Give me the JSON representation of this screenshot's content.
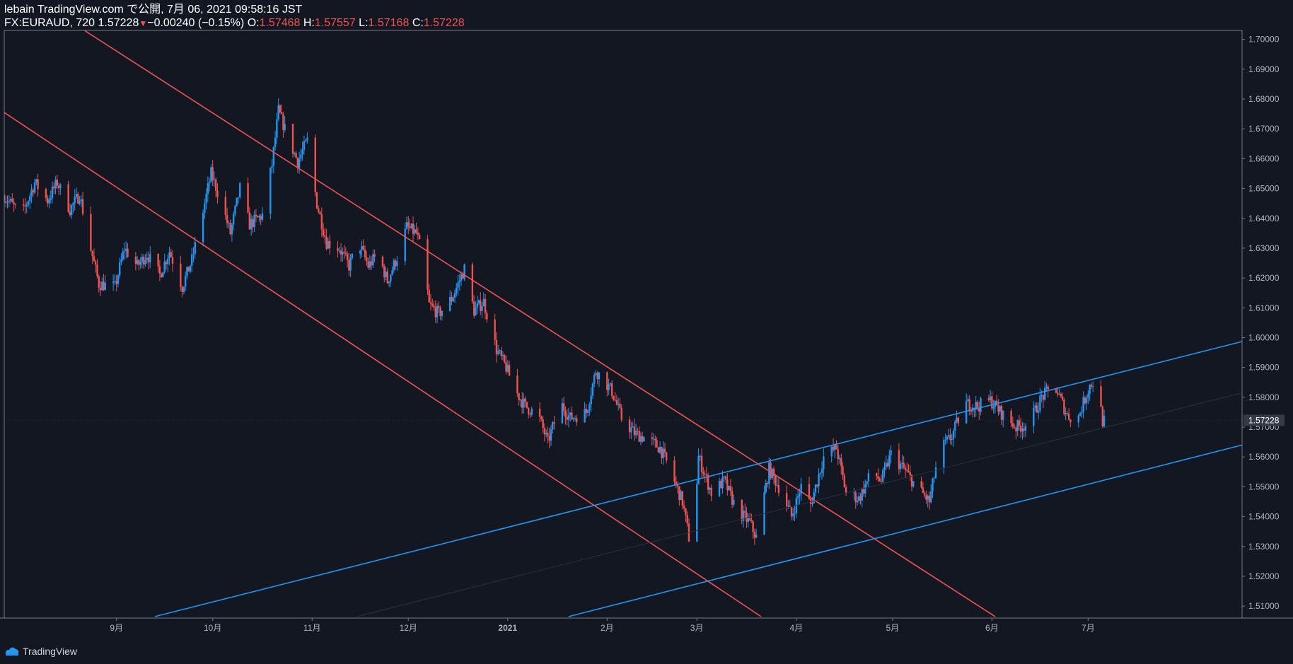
{
  "header": {
    "published": "lebain TradingView.com で公開, 7月 06, 2021 09:58:16 JST",
    "symbol": "FX:EURAUD, 720",
    "last": "1.57228",
    "change_arrow": "▼",
    "change": "−0.00240 (−0.15%)",
    "o_label": "O:",
    "o": "1.57468",
    "h_label": "H:",
    "h": "1.57557",
    "l_label": "L:",
    "l": "1.57168",
    "c_label": "C:",
    "c": "1.57228"
  },
  "footer": {
    "brand": "TradingView",
    "logo_icon": "tradingview-cloud-icon"
  },
  "colors": {
    "background": "#131722",
    "up": "#2196f3",
    "down": "#ef5350",
    "axis_text": "#b2b5be",
    "border": "#787b86"
  },
  "chart_data": {
    "type": "candlestick",
    "symbol": "FX:EURAUD",
    "interval": "720",
    "x_range": [
      "2020-07-28",
      "2021-08-18"
    ],
    "ylim": [
      1.506,
      1.703
    ],
    "y_ticks": [
      "1.70000",
      "1.69000",
      "1.68000",
      "1.67000",
      "1.66000",
      "1.65000",
      "1.64000",
      "1.63000",
      "1.62000",
      "1.61000",
      "1.60000",
      "1.59000",
      "1.58000",
      "1.57000",
      "1.56000",
      "1.55000",
      "1.54000",
      "1.53000",
      "1.52000",
      "1.51000"
    ],
    "x_ticks": [
      {
        "date": "2020-09-01",
        "label": "9月",
        "bold": false
      },
      {
        "date": "2020-10-01",
        "label": "10月",
        "bold": false
      },
      {
        "date": "2020-11-01",
        "label": "11月",
        "bold": false
      },
      {
        "date": "2020-12-01",
        "label": "12月",
        "bold": false
      },
      {
        "date": "2021-01-01",
        "label": "2021",
        "bold": true
      },
      {
        "date": "2021-02-01",
        "label": "2月",
        "bold": false
      },
      {
        "date": "2021-03-01",
        "label": "3月",
        "bold": false
      },
      {
        "date": "2021-04-01",
        "label": "4月",
        "bold": false
      },
      {
        "date": "2021-05-01",
        "label": "5月",
        "bold": false
      },
      {
        "date": "2021-06-01",
        "label": "6月",
        "bold": false
      },
      {
        "date": "2021-07-01",
        "label": "7月",
        "bold": false
      }
    ],
    "last_price": "1.57228",
    "price_path": [
      [
        "2020-07-28",
        1.648
      ],
      [
        "2020-08-03",
        1.641
      ],
      [
        "2020-08-07",
        1.652
      ],
      [
        "2020-08-11",
        1.646
      ],
      [
        "2020-08-14",
        1.652
      ],
      [
        "2020-08-18",
        1.643
      ],
      [
        "2020-08-21",
        1.648
      ],
      [
        "2020-08-24",
        1.632
      ],
      [
        "2020-08-27",
        1.618
      ],
      [
        "2020-09-01",
        1.617
      ],
      [
        "2020-09-04",
        1.63
      ],
      [
        "2020-09-08",
        1.624
      ],
      [
        "2020-09-11",
        1.628
      ],
      [
        "2020-09-15",
        1.621
      ],
      [
        "2020-09-18",
        1.629
      ],
      [
        "2020-09-22",
        1.617
      ],
      [
        "2020-09-25",
        1.626
      ],
      [
        "2020-09-28",
        1.64
      ],
      [
        "2020-10-01",
        1.655
      ],
      [
        "2020-10-04",
        1.646
      ],
      [
        "2020-10-07",
        1.635
      ],
      [
        "2020-10-10",
        1.65
      ],
      [
        "2020-10-13",
        1.638
      ],
      [
        "2020-10-17",
        1.641
      ],
      [
        "2020-10-20",
        1.658
      ],
      [
        "2020-10-22",
        1.676
      ],
      [
        "2020-10-25",
        1.667
      ],
      [
        "2020-10-28",
        1.659
      ],
      [
        "2020-10-31",
        1.666
      ],
      [
        "2020-11-03",
        1.645
      ],
      [
        "2020-11-06",
        1.632
      ],
      [
        "2020-11-10",
        1.63
      ],
      [
        "2020-11-13",
        1.624
      ],
      [
        "2020-11-16",
        1.632
      ],
      [
        "2020-11-19",
        1.624
      ],
      [
        "2020-11-22",
        1.628
      ],
      [
        "2020-11-25",
        1.619
      ],
      [
        "2020-11-28",
        1.627
      ],
      [
        "2020-12-01",
        1.637
      ],
      [
        "2020-12-04",
        1.635
      ],
      [
        "2020-12-06",
        1.627
      ],
      [
        "2020-12-08",
        1.611
      ],
      [
        "2020-12-11",
        1.608
      ],
      [
        "2020-12-15",
        1.613
      ],
      [
        "2020-12-19",
        1.623
      ],
      [
        "2020-12-22",
        1.609
      ],
      [
        "2020-12-25",
        1.612
      ],
      [
        "2020-12-29",
        1.596
      ],
      [
        "2021-01-01",
        1.59
      ],
      [
        "2021-01-04",
        1.582
      ],
      [
        "2021-01-07",
        1.577
      ],
      [
        "2021-01-11",
        1.574
      ],
      [
        "2021-01-14",
        1.565
      ],
      [
        "2021-01-18",
        1.578
      ],
      [
        "2021-01-21",
        1.573
      ],
      [
        "2021-01-26",
        1.575
      ],
      [
        "2021-01-29",
        1.589
      ],
      [
        "2021-02-01",
        1.585
      ],
      [
        "2021-02-03",
        1.582
      ],
      [
        "2021-02-06",
        1.573
      ],
      [
        "2021-02-10",
        1.568
      ],
      [
        "2021-02-14",
        1.566
      ],
      [
        "2021-02-18",
        1.563
      ],
      [
        "2021-02-21",
        1.556
      ],
      [
        "2021-02-25",
        1.545
      ],
      [
        "2021-02-28",
        1.527
      ],
      [
        "2021-03-02",
        1.56
      ],
      [
        "2021-03-06",
        1.548
      ],
      [
        "2021-03-10",
        1.552
      ],
      [
        "2021-03-14",
        1.542
      ],
      [
        "2021-03-18",
        1.538
      ],
      [
        "2021-03-20",
        1.533
      ],
      [
        "2021-03-24",
        1.556
      ],
      [
        "2021-03-28",
        1.548
      ],
      [
        "2021-03-31",
        1.54
      ],
      [
        "2021-04-03",
        1.55
      ],
      [
        "2021-04-06",
        1.544
      ],
      [
        "2021-04-10",
        1.56
      ],
      [
        "2021-04-14",
        1.563
      ],
      [
        "2021-04-17",
        1.548
      ],
      [
        "2021-04-21",
        1.546
      ],
      [
        "2021-04-25",
        1.555
      ],
      [
        "2021-04-28",
        1.552
      ],
      [
        "2021-05-01",
        1.561
      ],
      [
        "2021-05-05",
        1.556
      ],
      [
        "2021-05-09",
        1.55
      ],
      [
        "2021-05-13",
        1.545
      ],
      [
        "2021-05-16",
        1.562
      ],
      [
        "2021-05-20",
        1.567
      ],
      [
        "2021-05-24",
        1.578
      ],
      [
        "2021-05-28",
        1.577
      ],
      [
        "2021-06-01",
        1.579
      ],
      [
        "2021-06-05",
        1.574
      ],
      [
        "2021-06-09",
        1.57
      ],
      [
        "2021-06-13",
        1.571
      ],
      [
        "2021-06-17",
        1.58
      ],
      [
        "2021-06-21",
        1.584
      ],
      [
        "2021-06-25",
        1.574
      ],
      [
        "2021-06-28",
        1.572
      ],
      [
        "2021-07-02",
        1.584
      ],
      [
        "2021-07-04",
        1.586
      ],
      [
        "2021-07-06",
        1.572
      ]
    ],
    "trendlines": [
      {
        "color": "#ef5350",
        "width": 1.6,
        "points": [
          [
            "2020-08-22",
            1.703
          ],
          [
            "2021-06-02",
            1.5065
          ]
        ]
      },
      {
        "color": "#ef5350",
        "width": 1.6,
        "points": [
          [
            "2020-07-28",
            1.6755
          ],
          [
            "2021-03-21",
            1.5065
          ]
        ]
      },
      {
        "color": "#2196f3",
        "width": 1.6,
        "points": [
          [
            "2020-09-13",
            1.5065
          ],
          [
            "2021-08-18",
            1.5987
          ]
        ]
      },
      {
        "color": "#2196f3",
        "width": 1.6,
        "points": [
          [
            "2021-01-20",
            1.5065
          ],
          [
            "2021-08-18",
            1.564
          ]
        ]
      },
      {
        "color": "#2a3040",
        "width": 1,
        "points": [
          [
            "2020-11-15",
            1.5065
          ],
          [
            "2021-08-18",
            1.5815
          ]
        ]
      }
    ]
  }
}
